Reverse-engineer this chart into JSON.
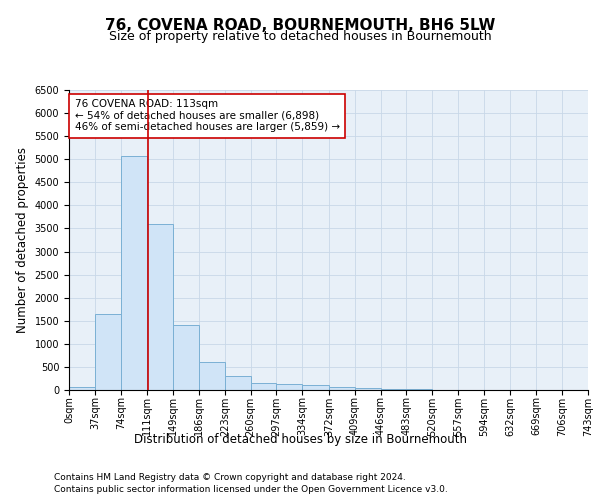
{
  "title": "76, COVENA ROAD, BOURNEMOUTH, BH6 5LW",
  "subtitle": "Size of property relative to detached houses in Bournemouth",
  "xlabel": "Distribution of detached houses by size in Bournemouth",
  "ylabel": "Number of detached properties",
  "footer_line1": "Contains HM Land Registry data © Crown copyright and database right 2024.",
  "footer_line2": "Contains public sector information licensed under the Open Government Licence v3.0.",
  "annotation_line1": "76 COVENA ROAD: 113sqm",
  "annotation_line2": "← 54% of detached houses are smaller (6,898)",
  "annotation_line3": "46% of semi-detached houses are larger (5,859) →",
  "property_size": 113,
  "bin_edges": [
    0,
    37,
    74,
    111,
    149,
    186,
    223,
    260,
    297,
    334,
    372,
    409,
    446,
    483,
    520,
    557,
    594,
    632,
    669,
    706,
    743
  ],
  "bar_heights": [
    70,
    1640,
    5080,
    3600,
    1400,
    610,
    300,
    155,
    130,
    100,
    60,
    50,
    30,
    15,
    8,
    5,
    3,
    2,
    1,
    1
  ],
  "bar_color": "#d0e4f7",
  "bar_edge_color": "#7ab0d4",
  "grid_color": "#c8d8e8",
  "bg_color": "#e8f0f8",
  "red_line_color": "#cc0000",
  "annotation_box_color": "#cc0000",
  "ylim": [
    0,
    6500
  ],
  "title_fontsize": 11,
  "subtitle_fontsize": 9,
  "axis_label_fontsize": 8.5,
  "tick_fontsize": 7,
  "annotation_fontsize": 7.5,
  "footer_fontsize": 6.5
}
